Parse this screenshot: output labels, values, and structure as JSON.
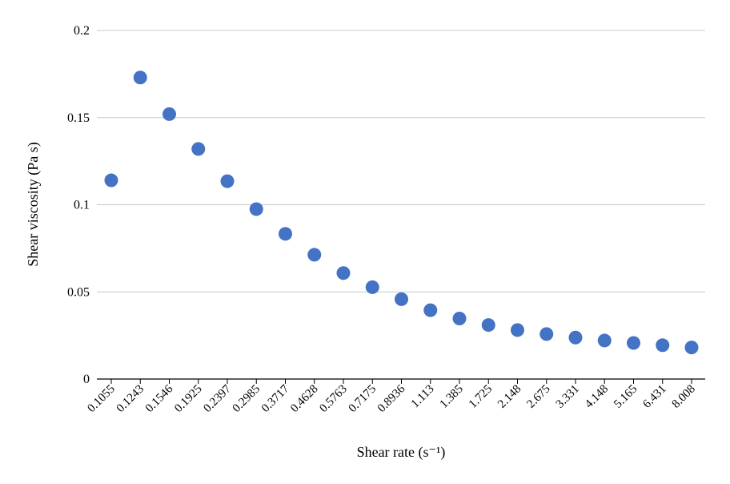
{
  "chart_data": {
    "type": "scatter",
    "xlabel": "Shear rate (s⁻¹)",
    "ylabel": "Shear viscosity (Pa s)",
    "categories": [
      "0.1055",
      "0.1243",
      "0.1546",
      "0.1925",
      "0.2397",
      "0.2985",
      "0.3717",
      "0.4628",
      "0.5763",
      "0.7175",
      "0.8936",
      "1.113",
      "1.385",
      "1.725",
      "2.148",
      "2.675",
      "3.331",
      "4.148",
      "5.165",
      "6.431",
      "8.008"
    ],
    "values": [
      0.114,
      0.173,
      0.152,
      0.132,
      0.1135,
      0.0975,
      0.0833,
      0.0713,
      0.0608,
      0.0527,
      0.0458,
      0.0395,
      0.0347,
      0.031,
      0.0281,
      0.0258,
      0.0238,
      0.0221,
      0.0207,
      0.0194,
      0.0181
    ],
    "yticks": [
      "0",
      "0.05",
      "0.1",
      "0.15",
      "0.2"
    ],
    "ylim": [
      0,
      0.2
    ],
    "grid": "horizontal",
    "legend": "none",
    "marker_color": "#4472C4"
  }
}
